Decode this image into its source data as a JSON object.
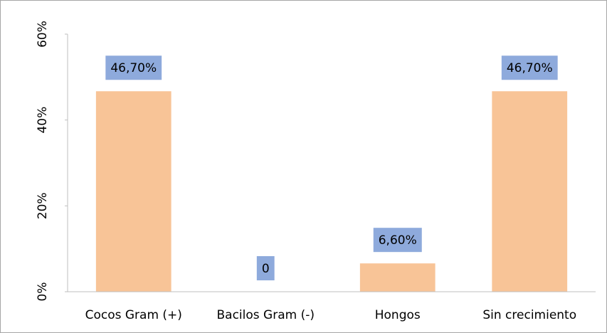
{
  "chart_data": {
    "type": "bar",
    "categories": [
      "Cocos Gram (+)",
      "Bacilos Gram (-)",
      "Hongos",
      "Sin crecimiento"
    ],
    "values": [
      46.7,
      0,
      6.6,
      46.7
    ],
    "value_labels": [
      "46,70%",
      "0",
      "6,60%",
      "46,70%"
    ],
    "color": "#f8c497",
    "label_color": "#8eaadc",
    "ylim": [
      0,
      60
    ],
    "yticks": [
      {
        "value": 0,
        "label": "0%"
      },
      {
        "value": 20,
        "label": "20%"
      },
      {
        "value": 40,
        "label": "40%"
      },
      {
        "value": 60,
        "label": "60%"
      }
    ]
  }
}
